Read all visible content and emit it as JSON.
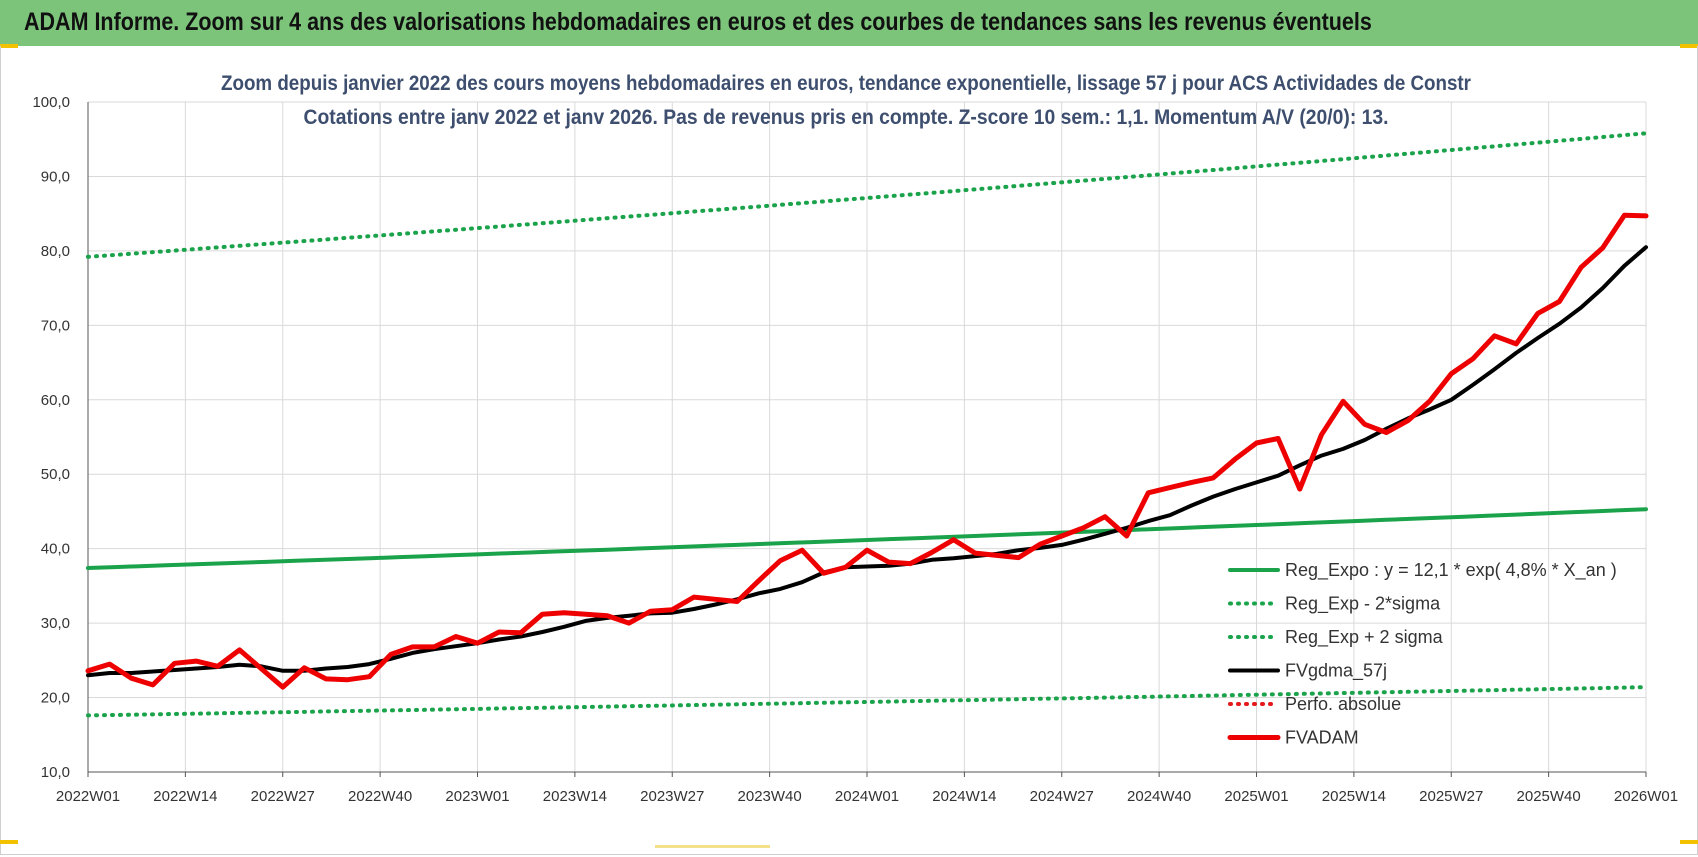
{
  "banner": {
    "title": "ADAM Informe. Zoom sur 4 ans des valorisations hebdomadaires en euros et des courbes de tendances sans les revenus éventuels"
  },
  "chart_data": {
    "type": "line",
    "title": "Zoom depuis janvier 2022 des cours moyens hebdomadaires en euros, tendance exponentielle, lissage 57 j pour ACS Actividades de Constr",
    "subtitle": "Cotations entre janv 2022 et janv 2026. Pas de revenus pris en compte. Z-score 10 sem.: 1,1. Momentum A/V (20/0):  13.",
    "ylim": [
      10,
      100
    ],
    "ytick_labels": [
      "10,0",
      "20,0",
      "30,0",
      "40,0",
      "50,0",
      "60,0",
      "70,0",
      "80,0",
      "90,0",
      "100,0"
    ],
    "xtick_labels": [
      "2022W01",
      "2022W14",
      "2022W27",
      "2022W40",
      "2023W01",
      "2023W14",
      "2023W27",
      "2023W40",
      "2024W01",
      "2024W14",
      "2024W27",
      "2024W40",
      "2025W01",
      "2025W14",
      "2025W27",
      "2025W40",
      "2026W01"
    ],
    "grid": true,
    "legend_position": "lower-right",
    "series": [
      {
        "name": "Reg_Expo : y = 12,1 * exp( 4,8% *  X_an )",
        "color": "#1aa34a",
        "style": "solid",
        "start": 37.4,
        "end": 45.3
      },
      {
        "name": "Reg_Exp - 2*sigma",
        "color": "#1aa34a",
        "style": "dotted",
        "start": 17.6,
        "end": 21.4
      },
      {
        "name": "Reg_Exp + 2 sigma",
        "color": "#1aa34a",
        "style": "dotted",
        "start": 79.2,
        "end": 95.8
      },
      {
        "name": "FVgdma_57j",
        "color": "#000000",
        "style": "solid",
        "values": [
          23.0,
          23.3,
          23.3,
          23.5,
          23.7,
          23.9,
          24.1,
          24.4,
          24.2,
          23.6,
          23.6,
          23.9,
          24.1,
          24.5,
          25.2,
          26.0,
          26.5,
          26.9,
          27.3,
          27.8,
          28.2,
          28.8,
          29.5,
          30.3,
          30.7,
          31.0,
          31.3,
          31.4,
          31.9,
          32.5,
          33.2,
          34.0,
          34.6,
          35.5,
          36.8,
          37.5,
          37.6,
          37.7,
          38.0,
          38.5,
          38.7,
          39.0,
          39.3,
          39.8,
          40.1,
          40.5,
          41.2,
          42.0,
          42.8,
          43.7,
          44.5,
          45.8,
          47.0,
          48.0,
          48.9,
          49.8,
          51.2,
          52.5,
          53.4,
          54.6,
          56.1,
          57.5,
          58.7,
          60.0,
          62.0,
          64.1,
          66.3,
          68.3,
          70.2,
          72.4,
          75.0,
          78.0,
          80.5
        ]
      },
      {
        "name": "Perfo. absolue",
        "color": "#e41a1c",
        "style": "dotted",
        "values": []
      },
      {
        "name": "FVADAM",
        "color": "#ee0000",
        "style": "solid",
        "values": [
          23.6,
          24.5,
          22.6,
          21.7,
          24.6,
          24.9,
          24.2,
          26.4,
          23.9,
          21.4,
          24.0,
          22.5,
          22.4,
          22.8,
          25.8,
          26.8,
          26.8,
          28.2,
          27.3,
          28.8,
          28.7,
          31.2,
          31.4,
          31.2,
          31.0,
          30.0,
          31.6,
          31.8,
          33.5,
          33.2,
          32.9,
          35.7,
          38.4,
          39.8,
          36.7,
          37.5,
          39.8,
          38.2,
          38.0,
          39.5,
          41.2,
          39.4,
          39.1,
          38.8,
          40.6,
          41.7,
          42.8,
          44.3,
          41.7,
          47.5,
          48.2,
          48.9,
          49.5,
          52.0,
          54.2,
          54.8,
          48.0,
          55.3,
          59.8,
          56.7,
          55.6,
          57.2,
          59.8,
          63.5,
          65.5,
          68.6,
          67.5,
          71.6,
          73.2,
          77.8,
          80.4,
          84.8,
          84.7
        ]
      }
    ]
  }
}
